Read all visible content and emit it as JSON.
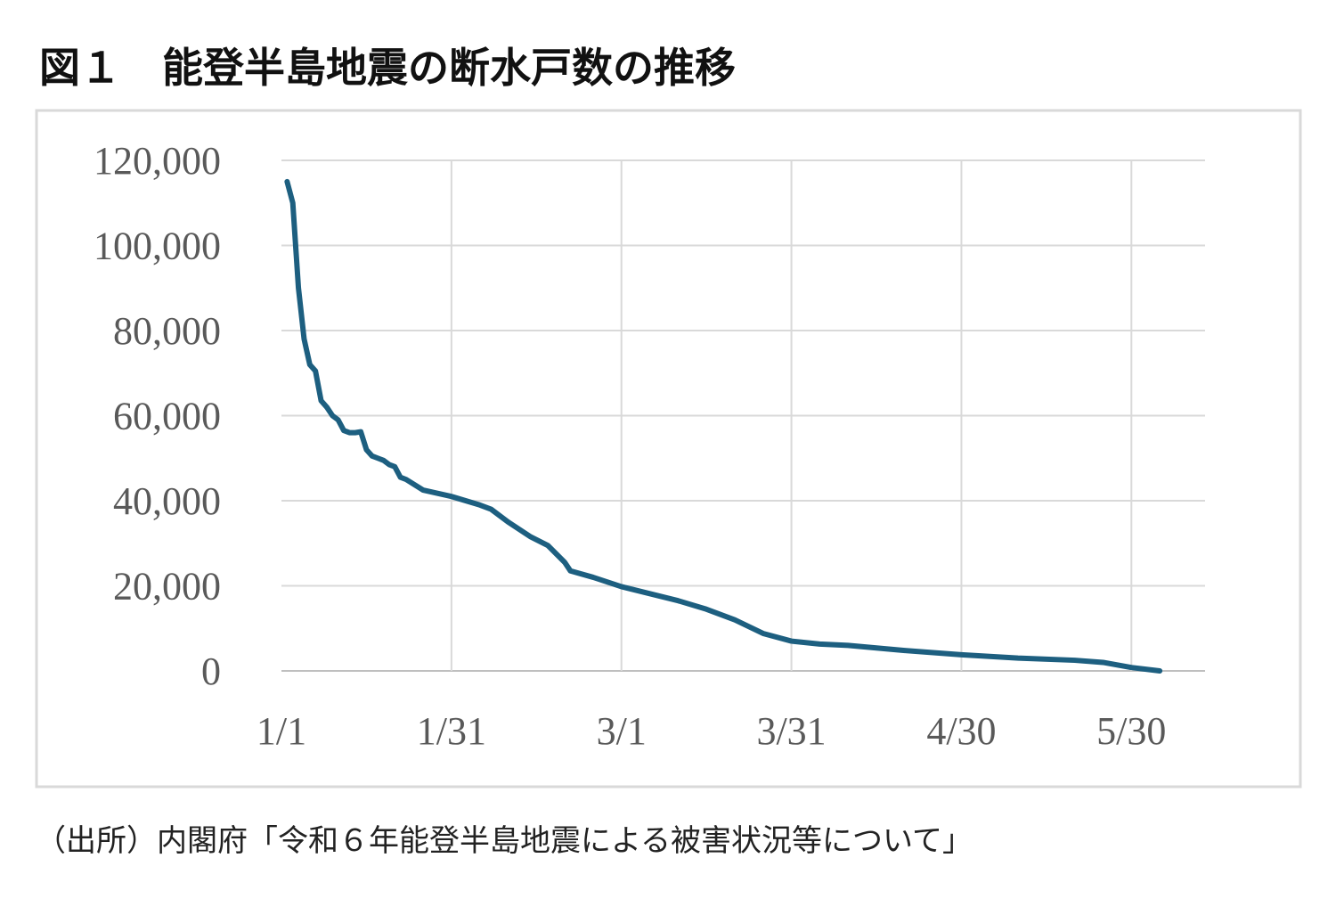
{
  "chart_data": {
    "type": "line",
    "title": "図１　能登半島地震の断水戸数の推移",
    "source": "（出所）内閣府「令和６年能登半島地震による被害状況等について」",
    "x": [
      1,
      2,
      3,
      4,
      5,
      6,
      7,
      8,
      9,
      10,
      11,
      12,
      13,
      14,
      15,
      16,
      17,
      18,
      19,
      20,
      21,
      22,
      25,
      30,
      35,
      37,
      40,
      44,
      47,
      50,
      51,
      55,
      60,
      70,
      75,
      80,
      85,
      90,
      95,
      100,
      110,
      120,
      130,
      140,
      145,
      150,
      155
    ],
    "series": [
      {
        "color": "#1d5f80",
        "values": [
          115000,
          110000,
          90000,
          78000,
          72000,
          70500,
          63500,
          62000,
          60000,
          59000,
          56500,
          56000,
          56000,
          56200,
          52000,
          50500,
          50000,
          49500,
          48500,
          48000,
          45500,
          45000,
          42500,
          41000,
          39000,
          38000,
          35000,
          31500,
          29500,
          25500,
          23500,
          22000,
          19800,
          16500,
          14500,
          12000,
          8800,
          7000,
          6300,
          6000,
          4800,
          3800,
          3000,
          2500,
          2000,
          800,
          0
        ]
      }
    ],
    "xlim": [
      0,
      163
    ],
    "xticks": [
      {
        "value": 0,
        "label": "1/1"
      },
      {
        "value": 30,
        "label": "1/31"
      },
      {
        "value": 60,
        "label": "3/1"
      },
      {
        "value": 90,
        "label": "3/31"
      },
      {
        "value": 120,
        "label": "4/30"
      },
      {
        "value": 150,
        "label": "5/30"
      }
    ],
    "ylim": [
      0,
      120000
    ],
    "yticks": [
      0,
      {
        "value": 20000,
        "label": "20,000"
      },
      {
        "value": 40000,
        "label": "40,000"
      },
      {
        "value": 60000,
        "label": "60,000"
      },
      {
        "value": 80000,
        "label": "80,000"
      },
      {
        "value": 100000,
        "label": "100,000"
      },
      {
        "value": 120000,
        "label": "120,000"
      }
    ],
    "grid": true
  }
}
